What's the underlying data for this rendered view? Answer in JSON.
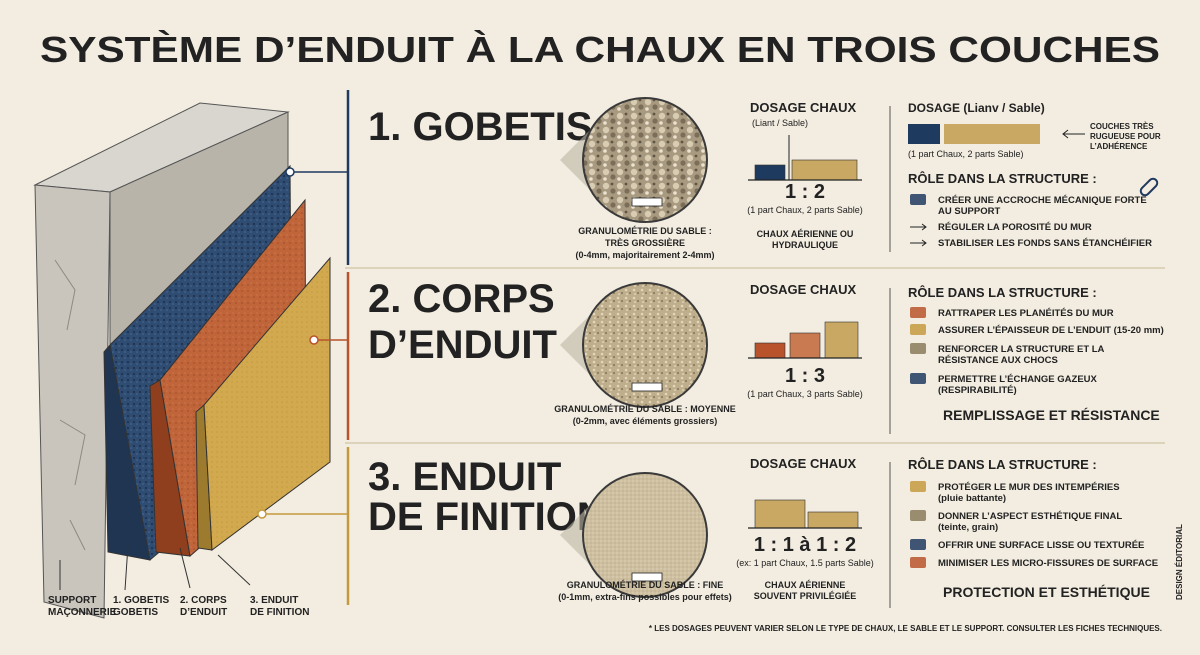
{
  "title": "SYSTÈME D’ENDUIT À LA CHAUX EN TROIS COUCHES",
  "layer_labels": [
    [
      "SUPPORT",
      "MAÇONNERIE"
    ],
    [
      "1. GOBETIS",
      "GOBETIS"
    ],
    [
      "2. CORPS",
      "D’ENDUIT"
    ],
    [
      "3. ENDUIT",
      "DE FINITION"
    ]
  ],
  "sections": [
    {
      "heading": [
        "1. GOBETIS"
      ],
      "grain": [
        "GRANULOMÉTRIE DU SABLE :",
        "TRÈS GROSSIÈRE",
        "(0-4mm, majoritairement 2-4mm)"
      ],
      "dosage_title": "DOSAGE CHAUX",
      "dosage_subtitle": "(Liant / Sable)",
      "ratio": "1 : 2",
      "ratio_note": "(1 part Chaux, 2 parts Sable)",
      "lime_note": [
        "CHAUX AÉRIENNE OU",
        "HYDRAULIQUE"
      ],
      "dosage_box": {
        "title": "DOSAGE (Lianv / Sable)",
        "note": "(1 part Chaux, 2 parts Sable)",
        "callout": [
          "COUCHES TRÈS",
          "RUGUEUSE POUR",
          "L’ADHÉRENCE"
        ]
      },
      "role_title": "RÔLE DANS LA STRUCTURE :",
      "roles": [
        [
          "CRÉER UNE ACCROCHE MÉCANIQUE FORTE",
          "AU SUPPORT"
        ],
        [
          "RÉGULER LA POROSITÉ DU MUR"
        ],
        [
          "STABILISER LES FONDS SANS ÉTANCHÉIFIER"
        ]
      ]
    },
    {
      "heading": [
        "2. CORPS",
        "D’ENDUIT"
      ],
      "grain": [
        "GRANULOMÉTRIE DU SABLE : MOYENNE",
        "(0-2mm, avec éléments grossiers)"
      ],
      "dosage_title": "DOSAGE CHAUX",
      "ratio": "1 : 3",
      "ratio_note": "(1 part Chaux, 3 parts Sable)",
      "role_title": "RÔLE DANS LA STRUCTURE :",
      "roles": [
        [
          "RATTRAPER LES PLANÉITÉS DU MUR"
        ],
        [
          "ASSURER L’ÉPAISSEUR DE L’ENDUIT (15-20 mm)"
        ],
        [
          "RENFORCER LA STRUCTURE ET LA",
          "RÉSISTANCE AUX CHOCS"
        ],
        [
          "PERMETTRE L’ÉCHANGE GAZEUX",
          "(RESPIRABILITÉ)"
        ]
      ],
      "summary": "REMPLISSAGE ET RÉSISTANCE"
    },
    {
      "heading": [
        "3. ENDUIT",
        "DE FINITION"
      ],
      "grain": [
        "GRANULOMÉTRIE DU SABLE : FINE",
        "(0-1mm, extra-fins possibles pour effets)"
      ],
      "dosage_title": "DOSAGE CHAUX",
      "ratio": "1 : 1 à 1 : 2",
      "ratio_note": "(ex: 1 part Chaux, 1.5 parts Sable)",
      "lime_note": [
        "CHAUX AÉRIENNE",
        "SOUVENT PRIVILÉGIÉE"
      ],
      "role_title": "RÔLE DANS LA STRUCTURE :",
      "roles": [
        [
          "PROTÉGER LE MUR DES INTEMPÉRIES",
          "(pluie battante)"
        ],
        [
          "DONNER L’ASPECT ESTHÉTIQUE FINAL",
          "(teinte, grain)"
        ],
        [
          "OFFRIR UNE SURFACE LISSE OU TEXTURÉE"
        ],
        [
          "MINIMISER LES MICRO-FISSURES DE SURFACE"
        ]
      ],
      "summary": "PROTECTION ET ESTHÉTIQUE"
    }
  ],
  "footnote": "* LES DOSAGES PEUVENT VARIER SELON LE TYPE DE CHAUX, LE SABLE ET LE SUPPORT. CONSULTER LES FICHES TECHNIQUES.",
  "credit": "DESIGN ÉDITORIAL"
}
